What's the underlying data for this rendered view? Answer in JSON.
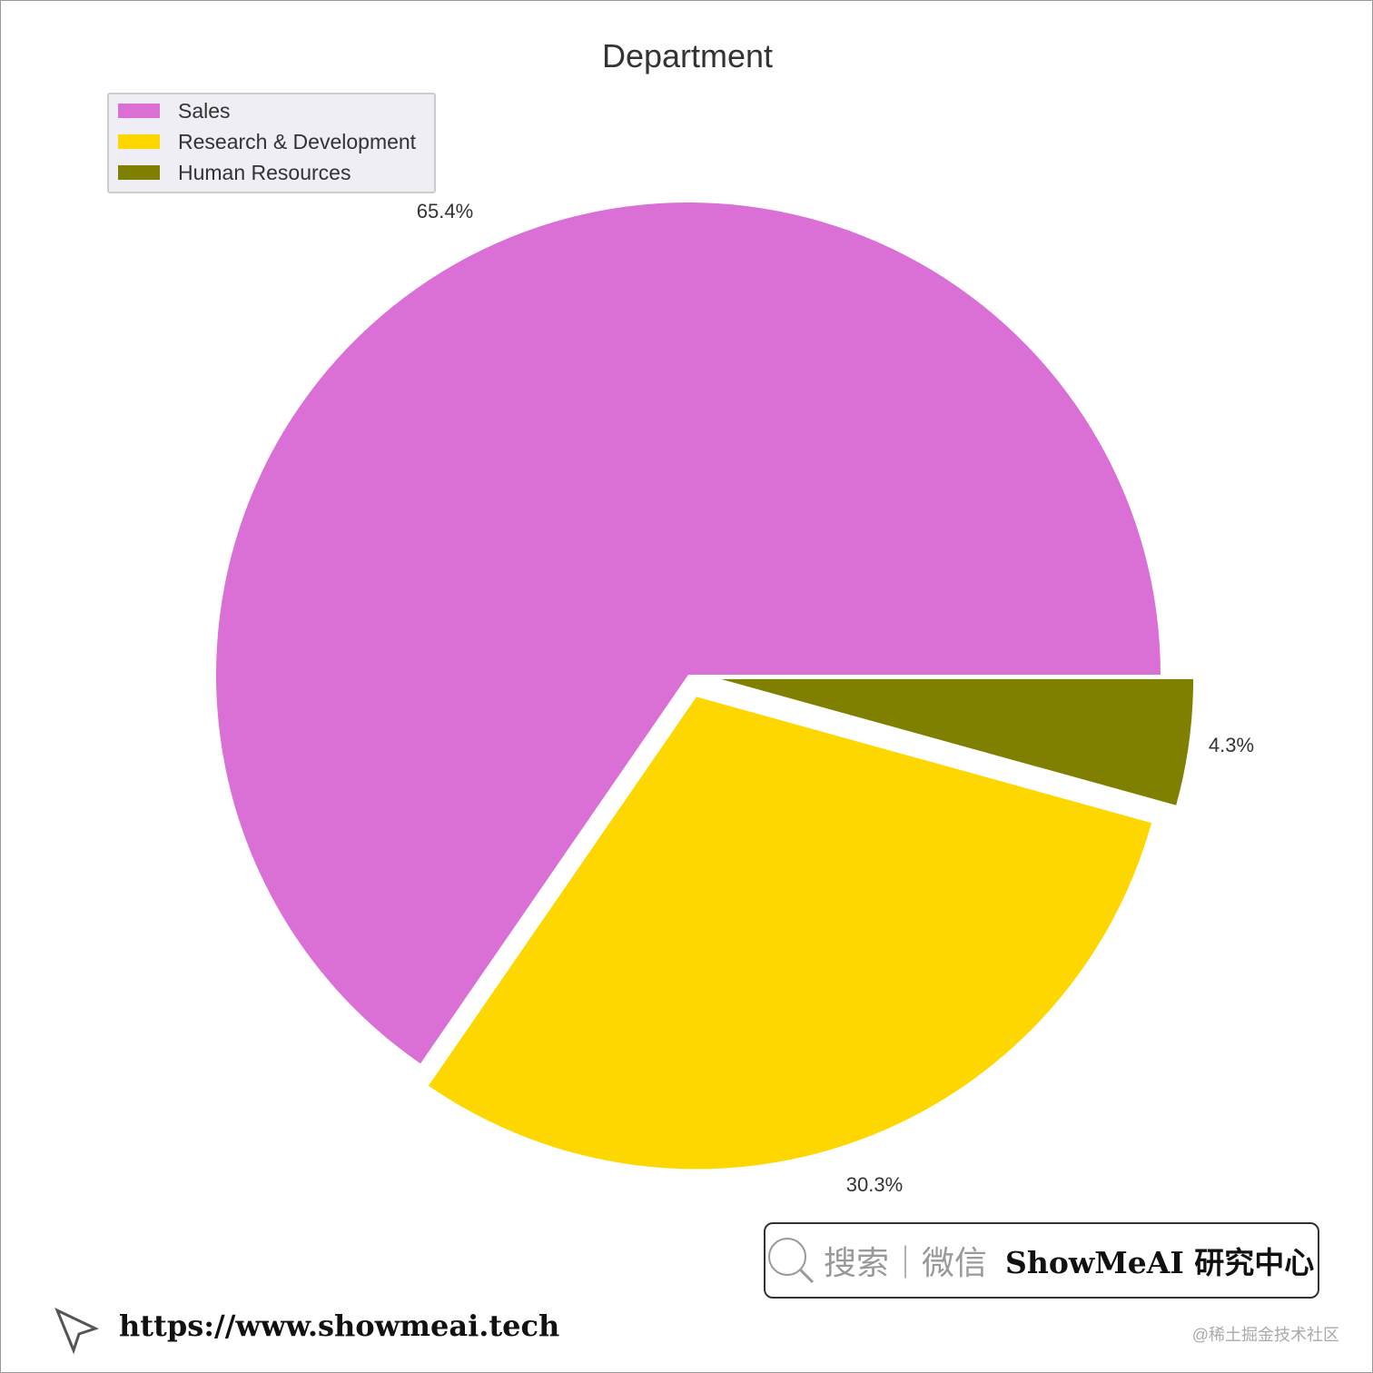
{
  "chart_data": {
    "type": "pie",
    "title": "Department",
    "categories": [
      "Sales",
      "Research & Development",
      "Human Resources"
    ],
    "values": [
      65.4,
      30.3,
      4.3
    ],
    "labels": [
      "65.4%",
      "30.3%",
      "4.3%"
    ],
    "colors": [
      "#da70d6",
      "#ffd700",
      "#808000"
    ],
    "explode": [
      0,
      0.05,
      0.07
    ],
    "start_angle": 0,
    "direction": "counterclockwise",
    "legend": "top-left"
  },
  "watermark": {
    "search_text": "搜索｜微信",
    "brand": "ShowMeAI 研究中心",
    "url": "https://www.showmeai.tech",
    "credit": "@稀土掘金技术社区"
  }
}
